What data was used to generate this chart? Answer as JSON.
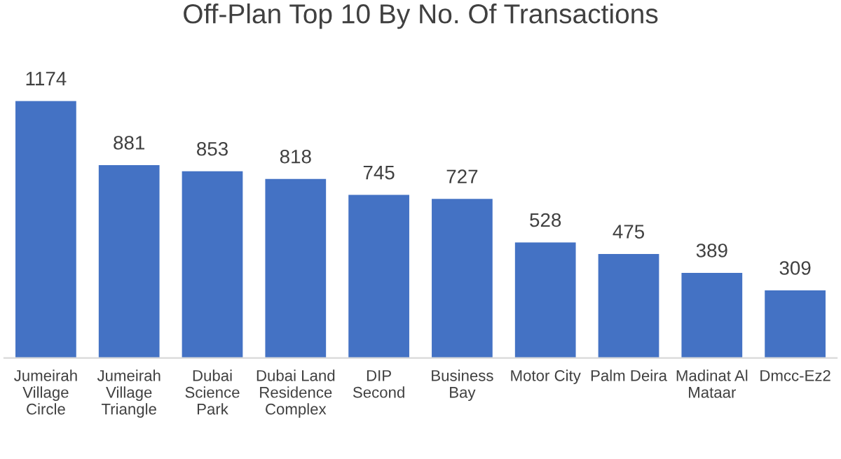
{
  "chart_data": {
    "type": "bar",
    "title": "Off-Plan Top 10 By No. Of Transactions",
    "categories": [
      "Jumeirah\nVillage\nCircle",
      "Jumeirah\nVillage\nTriangle",
      "Dubai\nScience\nPark",
      "Dubai Land\nResidence\nComplex",
      "DIP\nSecond",
      "Business\nBay",
      "Motor City",
      "Palm Deira",
      "Madinat Al\nMataar",
      "Dmcc-Ez2"
    ],
    "values": [
      1174,
      881,
      853,
      818,
      745,
      727,
      528,
      475,
      389,
      309
    ],
    "color": "#4472c4",
    "data_labels": true,
    "grid": false,
    "legend": false
  }
}
